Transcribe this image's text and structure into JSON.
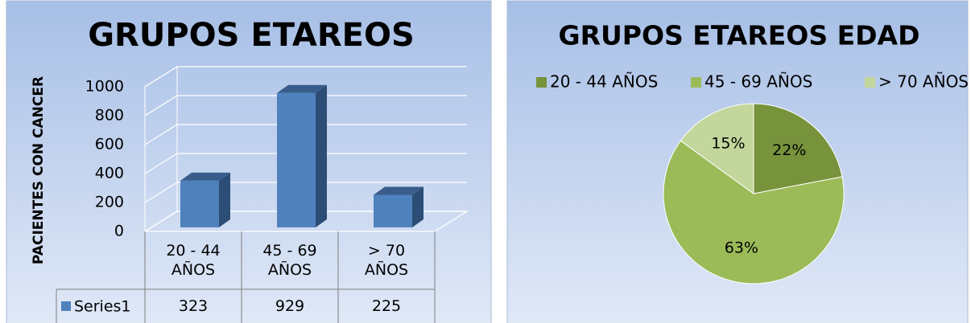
{
  "chart_data": [
    {
      "type": "bar3d",
      "title": "GRUPOS ETAREOS",
      "y_label": "PACIENTES CON CANCER",
      "categories": [
        "20 - 44 AÑOS",
        "45 - 69 AÑOS",
        "> 70 AÑOS"
      ],
      "series": [
        {
          "name": "Series1",
          "color": "#4f81bd",
          "values": [
            323,
            929,
            225
          ]
        }
      ],
      "ylim": [
        0,
        1000
      ],
      "yticks": [
        0,
        200,
        400,
        600,
        800,
        1000
      ],
      "grid": true,
      "data_table": true
    },
    {
      "type": "pie",
      "title": "GRUPOS ETAREOS EDAD",
      "categories": [
        "20 - 44 AÑOS",
        "45 - 69 AÑOS",
        "> 70 AÑOS"
      ],
      "values": [
        22,
        63,
        15
      ],
      "value_labels": [
        "22%",
        "63%",
        "15%"
      ],
      "colors": [
        "#77933c",
        "#9bbb59",
        "#c3d69b"
      ],
      "legend": "top"
    }
  ]
}
